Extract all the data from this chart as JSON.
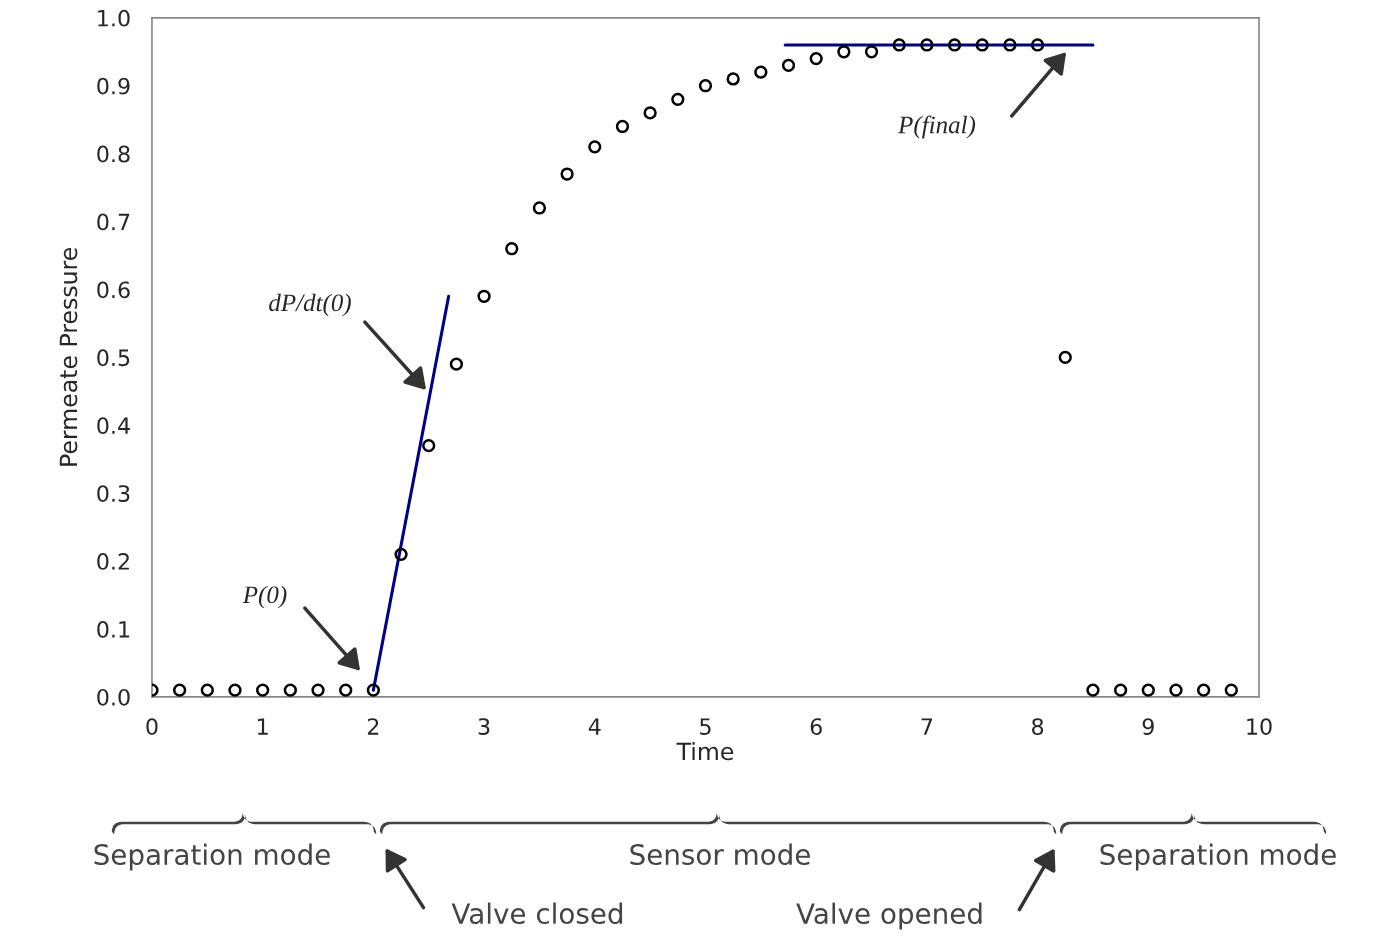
{
  "chart_data": {
    "type": "scatter",
    "xlabel": "Time",
    "ylabel": "Permeate Pressure",
    "xlim": [
      0,
      10
    ],
    "xticks": [
      0,
      1,
      2,
      3,
      4,
      5,
      6,
      7,
      8,
      9,
      10
    ],
    "ylim": [
      0,
      1.0
    ],
    "yticks": [
      {
        "value": 0,
        "label": "0.0"
      },
      0.1,
      0.2,
      0.3,
      0.4,
      0.5,
      0.6,
      0.7,
      0.8,
      0.9,
      {
        "value": 1.0,
        "label": "1.0"
      }
    ],
    "grid": false,
    "series": [
      {
        "marker": "circle",
        "color": "#000000",
        "x": [
          0,
          0.25,
          0.5,
          0.75,
          1,
          1.25,
          1.5,
          1.75,
          2,
          2.25,
          2.5,
          2.75,
          3,
          3.25,
          3.5,
          3.75,
          4,
          4.25,
          4.5,
          4.75,
          5,
          5.25,
          5.5,
          5.75,
          6,
          6.25,
          6.5,
          6.75,
          7,
          7.25,
          7.5,
          7.75,
          8,
          8.25,
          8.5,
          8.75,
          9,
          9.25,
          9.5,
          9.75
        ],
        "values": [
          0.01,
          0.01,
          0.01,
          0.01,
          0.01,
          0.01,
          0.01,
          0.01,
          0.01,
          0.21,
          0.37,
          0.49,
          0.59,
          0.66,
          0.72,
          0.77,
          0.81,
          0.84,
          0.86,
          0.88,
          0.9,
          0.91,
          0.92,
          0.93,
          0.94,
          0.95,
          0.95,
          0.96,
          0.96,
          0.96,
          0.96,
          0.96,
          0.96,
          0.5,
          0.01,
          0.01,
          0.01,
          0.01,
          0.01,
          0.01
        ]
      },
      {
        "type": "line",
        "color": "#00008b",
        "x": [
          2,
          2.68
        ],
        "values": [
          0.01,
          0.59
        ]
      },
      {
        "type": "line",
        "color": "#00008b",
        "x": [
          5.72,
          8.5
        ],
        "values": [
          0.96,
          0.96
        ]
      }
    ],
    "annotations": [
      "P(0)",
      "dP/dt(0)",
      "P(final)",
      "Valve closed",
      "Valve opened",
      "Separation mode",
      "Sensor mode",
      "Separation mode"
    ]
  }
}
